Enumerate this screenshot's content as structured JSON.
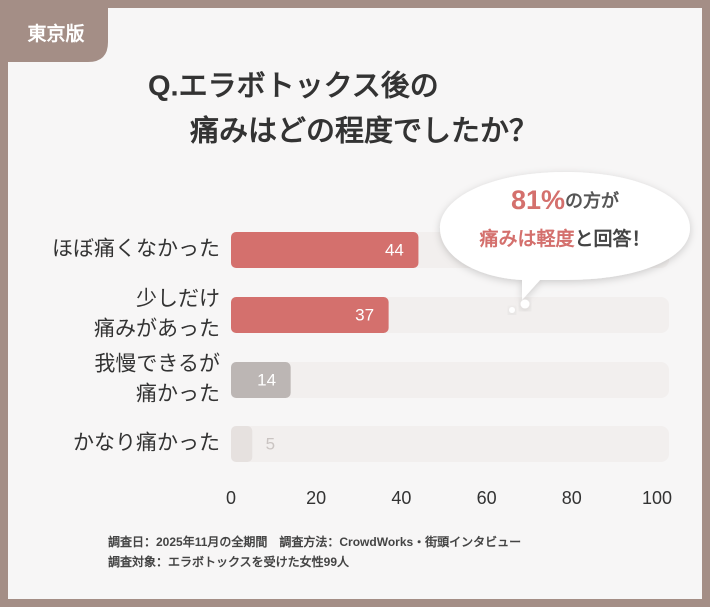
{
  "badge": "東京版",
  "chart_data": {
    "type": "bar",
    "title_lines": [
      "Q.エラボトックス後の",
      "痛みはどの程度でしたか？"
    ],
    "categories": [
      [
        "ほぼ痛くなかった"
      ],
      [
        "少しだけ",
        "痛みがあった"
      ],
      [
        "我慢できるが",
        "痛かった"
      ],
      [
        "かなり痛かった"
      ]
    ],
    "values": [
      44,
      37,
      14,
      5
    ],
    "colors": [
      "#d4706d",
      "#d4706d",
      "#bcb6b4",
      "#e6e1df"
    ],
    "track_color": "#f2efee",
    "xlim": [
      0,
      100
    ],
    "xticks": [
      0,
      20,
      40,
      60,
      80,
      100
    ],
    "callout": {
      "line1": [
        "81%",
        "の方が"
      ],
      "line2": [
        "痛みは軽度",
        "と回答！"
      ]
    }
  },
  "footer": [
    "調査日：2025年11月の全期間　調査方法：CrowdWorks・街頭インタビュー",
    "調査対象：エラボトックスを受けた女性99人"
  ]
}
